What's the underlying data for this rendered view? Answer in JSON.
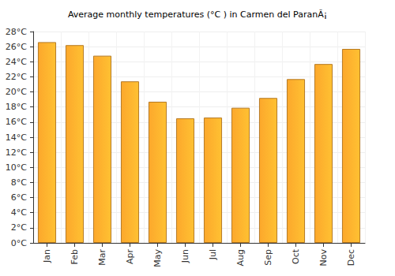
{
  "chart_data": {
    "type": "bar",
    "title": "Average monthly temperatures (°C ) in Carmen del ParanÃ¡",
    "categories": [
      "Jan",
      "Feb",
      "Mar",
      "Apr",
      "May",
      "Jun",
      "Jul",
      "Aug",
      "Sep",
      "Oct",
      "Nov",
      "Dec"
    ],
    "values": [
      26.6,
      26.2,
      24.8,
      21.4,
      18.7,
      16.5,
      16.6,
      17.9,
      19.2,
      21.7,
      23.7,
      25.7
    ],
    "color": "#fca82c",
    "ylim": [
      0,
      28
    ],
    "yticks": [
      {
        "value": 0,
        "label": "0°C"
      },
      {
        "value": 2,
        "label": "2°C"
      },
      {
        "value": 4,
        "label": "4°C"
      },
      {
        "value": 6,
        "label": "6°C"
      },
      {
        "value": 8,
        "label": "8°C"
      },
      {
        "value": 10,
        "label": "10°C"
      },
      {
        "value": 12,
        "label": "12°C"
      },
      {
        "value": 14,
        "label": "14°C"
      },
      {
        "value": 16,
        "label": "16°C"
      },
      {
        "value": 18,
        "label": "18°C"
      },
      {
        "value": 20,
        "label": "20°C"
      },
      {
        "value": 22,
        "label": "22°C"
      },
      {
        "value": 24,
        "label": "24°C"
      },
      {
        "value": 26,
        "label": "26°C"
      },
      {
        "value": 28,
        "label": "28°C"
      }
    ],
    "grid": true
  }
}
